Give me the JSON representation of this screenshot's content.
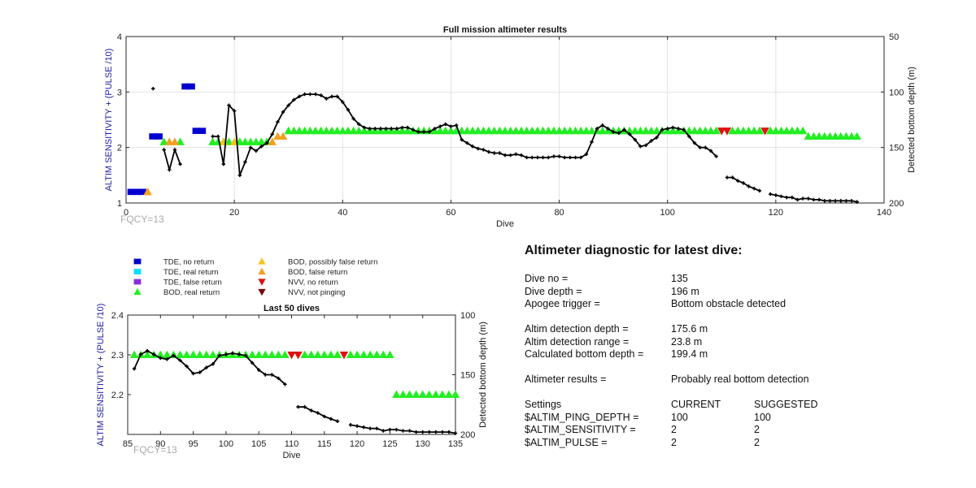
{
  "top_chart_label": "FQCY=13",
  "bottom_chart_label": "FQCY=13",
  "colors": {
    "tde_no_return": "#0000d0",
    "tde_real_return": "#00e0ff",
    "tde_false_return": "#8a2be2",
    "bod_real_return": "#22ee22",
    "bod_possibly_false": "#f5c518",
    "bod_false": "#f5a020",
    "nvv_no_return": "#dd1111",
    "nvv_not_pinging": "#7a0a0a",
    "depth_line": "#000000",
    "left_axis_label": "#1a1aa8"
  },
  "legend": [
    {
      "label": "TDE, no return",
      "marker": "square",
      "color": "#0000d0"
    },
    {
      "label": "TDE, real return",
      "marker": "square",
      "color": "#00e0ff"
    },
    {
      "label": "TDE, false return",
      "marker": "square",
      "color": "#8a2be2"
    },
    {
      "label": "BOD, real return",
      "marker": "triangle-up",
      "color": "#22ee22"
    },
    {
      "label": "BOD, possibly false return",
      "marker": "triangle-up",
      "color": "#f5c518"
    },
    {
      "label": "BOD, false return",
      "marker": "triangle-up",
      "color": "#f5a020"
    },
    {
      "label": "NVV, no return",
      "marker": "triangle-down",
      "color": "#dd1111"
    },
    {
      "label": "NVV, not pinging",
      "marker": "triangle-down",
      "color": "#7a0a0a"
    }
  ],
  "chart_data": [
    {
      "type": "scatter",
      "title": "Full mission altimeter results",
      "xlabel": "Dive",
      "ylabel": "ALTIM SENSITIVITY + (PULSE /10)",
      "y2label": "Detected bottom depth (m)",
      "xlim": [
        0,
        140
      ],
      "ylim": [
        1,
        4
      ],
      "y2lim": [
        50,
        200
      ],
      "y2_reversed": true,
      "xticks": [
        0,
        20,
        40,
        60,
        80,
        100,
        120,
        140
      ],
      "yticks": [
        1,
        2,
        3,
        4
      ],
      "y2ticks": [
        50,
        100,
        150,
        200
      ],
      "grid": true,
      "series": [
        {
          "name": "TDE, no return",
          "marker": "square",
          "points": [
            [
              1,
              1.2
            ],
            [
              2,
              1.2
            ],
            [
              3,
              1.2
            ],
            [
              5,
              2.2
            ],
            [
              6,
              2.2
            ],
            [
              11,
              3.1
            ],
            [
              12,
              3.1
            ],
            [
              13,
              2.3
            ],
            [
              14,
              2.3
            ]
          ]
        },
        {
          "name": "BOD, real return",
          "marker": "triangle-up",
          "x_ranges": [
            [
              7,
              7,
              2.1
            ],
            [
              10,
              10,
              2.1
            ],
            [
              16,
              19,
              2.1
            ],
            [
              21,
              26,
              2.1
            ],
            [
              30,
              109,
              2.3
            ],
            [
              112,
              117,
              2.3
            ],
            [
              119,
              125,
              2.3
            ],
            [
              126,
              135,
              2.2
            ]
          ]
        },
        {
          "name": "BOD, possibly false return",
          "marker": "triangle-up",
          "points": [
            [
              18,
              2.1
            ],
            [
              20,
              2.1
            ]
          ]
        },
        {
          "name": "BOD, false return",
          "marker": "triangle-up",
          "points": [
            [
              4,
              1.2
            ],
            [
              8,
              2.1
            ],
            [
              9,
              2.1
            ],
            [
              27,
              2.1
            ],
            [
              28,
              2.2
            ],
            [
              29,
              2.2
            ]
          ]
        },
        {
          "name": "NVV, no return",
          "marker": "triangle-down",
          "points": [
            [
              110,
              2.3
            ],
            [
              111,
              2.3
            ],
            [
              118,
              2.3
            ]
          ]
        }
      ],
      "depth": [
        [
          [
            5,
            97
          ]
        ],
        [
          [
            7,
            152
          ],
          [
            8,
            170
          ],
          [
            9,
            152
          ],
          [
            10,
            165
          ]
        ],
        [
          [
            16,
            140
          ],
          [
            17,
            140
          ],
          [
            18,
            165
          ],
          [
            19,
            112
          ],
          [
            20,
            117
          ],
          [
            21,
            175
          ],
          [
            22,
            163
          ],
          [
            23,
            150
          ],
          [
            24,
            153
          ],
          [
            25,
            149
          ],
          [
            26,
            146
          ],
          [
            27,
            138
          ],
          [
            28,
            127
          ],
          [
            29,
            118
          ],
          [
            30,
            112
          ],
          [
            31,
            107
          ],
          [
            32,
            104
          ],
          [
            33,
            102
          ],
          [
            34,
            102
          ],
          [
            35,
            102
          ],
          [
            36,
            103
          ],
          [
            37,
            106
          ],
          [
            38,
            104
          ],
          [
            39,
            104
          ],
          [
            40,
            109
          ],
          [
            41,
            116
          ],
          [
            42,
            124
          ],
          [
            43,
            129
          ],
          [
            44,
            132
          ],
          [
            45,
            133
          ],
          [
            46,
            133
          ],
          [
            47,
            133
          ],
          [
            48,
            133
          ],
          [
            49,
            133
          ],
          [
            50,
            133
          ],
          [
            51,
            132
          ],
          [
            52,
            132
          ],
          [
            53,
            134
          ],
          [
            54,
            136
          ],
          [
            55,
            136
          ],
          [
            56,
            136
          ],
          [
            57,
            133
          ],
          [
            58,
            131
          ],
          [
            59,
            129
          ],
          [
            60,
            131
          ],
          [
            61,
            130
          ],
          [
            62,
            143
          ],
          [
            63,
            146
          ],
          [
            64,
            149
          ],
          [
            65,
            151
          ],
          [
            66,
            152
          ],
          [
            67,
            154
          ],
          [
            68,
            155
          ],
          [
            69,
            155
          ],
          [
            70,
            157
          ],
          [
            71,
            157
          ],
          [
            72,
            156
          ],
          [
            73,
            157
          ],
          [
            74,
            159
          ],
          [
            75,
            159
          ],
          [
            76,
            159
          ],
          [
            77,
            159
          ],
          [
            78,
            159
          ],
          [
            79,
            158
          ],
          [
            80,
            158
          ],
          [
            81,
            159
          ],
          [
            82,
            159
          ],
          [
            83,
            159
          ],
          [
            84,
            159
          ],
          [
            85,
            156
          ],
          [
            86,
            145
          ],
          [
            87,
            133
          ],
          [
            88,
            130
          ],
          [
            89,
            133
          ],
          [
            90,
            136
          ],
          [
            91,
            137
          ],
          [
            92,
            134
          ],
          [
            93,
            138
          ],
          [
            94,
            143
          ],
          [
            95,
            149
          ],
          [
            96,
            148
          ],
          [
            97,
            144
          ],
          [
            98,
            141
          ],
          [
            99,
            134
          ],
          [
            100,
            133
          ],
          [
            101,
            132
          ],
          [
            102,
            133
          ],
          [
            103,
            134
          ],
          [
            104,
            140
          ],
          [
            105,
            146
          ],
          [
            106,
            150
          ],
          [
            107,
            150
          ],
          [
            108,
            153
          ],
          [
            109,
            158
          ]
        ],
        [
          [
            111,
            177
          ],
          [
            112,
            177
          ],
          [
            113,
            180
          ],
          [
            114,
            182
          ],
          [
            115,
            185
          ],
          [
            116,
            187
          ],
          [
            117,
            189
          ]
        ],
        [
          [
            119,
            192
          ],
          [
            120,
            193
          ],
          [
            121,
            194
          ],
          [
            122,
            195
          ],
          [
            123,
            195
          ],
          [
            124,
            197
          ],
          [
            125,
            196
          ],
          [
            126,
            196
          ],
          [
            127,
            197
          ],
          [
            128,
            197
          ],
          [
            129,
            198
          ],
          [
            130,
            198
          ],
          [
            131,
            198
          ],
          [
            132,
            198
          ],
          [
            133,
            198
          ],
          [
            134,
            198
          ],
          [
            135,
            199
          ]
        ]
      ],
      "annotations": [
        "FQCY=13"
      ]
    },
    {
      "type": "scatter",
      "title": "Last 50 dives",
      "xlabel": "Dive",
      "ylabel": "ALTIM SENSITIVITY + (PULSE /10)",
      "y2label": "Detected bottom depth (m)",
      "xlim": [
        85,
        135
      ],
      "ylim": [
        2.1,
        2.4
      ],
      "y2lim": [
        100,
        200
      ],
      "y2_reversed": true,
      "xticks": [
        85,
        90,
        95,
        100,
        105,
        110,
        115,
        120,
        125,
        130,
        135
      ],
      "yticks": [
        2.2,
        2.3,
        2.4
      ],
      "y2ticks": [
        100,
        150,
        200
      ],
      "grid": false,
      "series": [
        {
          "name": "BOD, real return",
          "marker": "triangle-up",
          "x_ranges": [
            [
              86,
              109,
              2.3
            ],
            [
              112,
              117,
              2.3
            ],
            [
              119,
              125,
              2.3
            ],
            [
              126,
              135,
              2.2
            ]
          ]
        },
        {
          "name": "NVV, no return",
          "marker": "triangle-down",
          "points": [
            [
              110,
              2.3
            ],
            [
              111,
              2.3
            ],
            [
              118,
              2.3
            ]
          ]
        }
      ],
      "depth": [
        [
          [
            86,
            145
          ],
          [
            87,
            133
          ],
          [
            88,
            130
          ],
          [
            89,
            133
          ],
          [
            90,
            136
          ],
          [
            91,
            137
          ],
          [
            92,
            134
          ],
          [
            93,
            138
          ],
          [
            94,
            143
          ],
          [
            95,
            149
          ],
          [
            96,
            148
          ],
          [
            97,
            144
          ],
          [
            98,
            141
          ],
          [
            99,
            134
          ],
          [
            100,
            133
          ],
          [
            101,
            132
          ],
          [
            102,
            133
          ],
          [
            103,
            134
          ],
          [
            104,
            140
          ],
          [
            105,
            146
          ],
          [
            106,
            150
          ],
          [
            107,
            150
          ],
          [
            108,
            153
          ],
          [
            109,
            158
          ]
        ],
        [
          [
            111,
            177
          ],
          [
            112,
            177
          ],
          [
            113,
            180
          ],
          [
            114,
            182
          ],
          [
            115,
            185
          ],
          [
            116,
            187
          ],
          [
            117,
            189
          ]
        ],
        [
          [
            119,
            192
          ],
          [
            120,
            193
          ],
          [
            121,
            194
          ],
          [
            122,
            195
          ],
          [
            123,
            195
          ],
          [
            124,
            197
          ],
          [
            125,
            196
          ],
          [
            126,
            196
          ],
          [
            127,
            197
          ],
          [
            128,
            197
          ],
          [
            129,
            198
          ],
          [
            130,
            198
          ],
          [
            131,
            198
          ],
          [
            132,
            198
          ],
          [
            133,
            198
          ],
          [
            134,
            198
          ],
          [
            135,
            199
          ]
        ]
      ],
      "annotations": [
        "FQCY=13"
      ]
    }
  ],
  "diagnostic": {
    "title": "Altimeter diagnostic for latest dive:",
    "dive_no_label": "Dive no =",
    "dive_no": "135",
    "dive_depth_label": "Dive depth =",
    "dive_depth": "196 m",
    "apogee_label": "Apogee trigger =",
    "apogee": "Bottom obstacle detected",
    "altim_depth_label": "Altim detection depth =",
    "altim_depth": "175.6 m",
    "altim_range_label": "Altim detection range =",
    "altim_range": "23.8 m",
    "calc_depth_label": "Calculated bottom depth =",
    "calc_depth": "199.4 m",
    "results_label": "Altimeter results =",
    "results": "Probably real bottom detection",
    "settings_label": "Settings",
    "current_label": "CURRENT",
    "suggested_label": "SUGGESTED",
    "settings": [
      {
        "name": "$ALTIM_PING_DEPTH =",
        "current": "100",
        "suggested": "100"
      },
      {
        "name": "$ALTIM_SENSITIVITY =",
        "current": "2",
        "suggested": "2"
      },
      {
        "name": "$ALTIM_PULSE =",
        "current": "2",
        "suggested": "2"
      }
    ]
  }
}
